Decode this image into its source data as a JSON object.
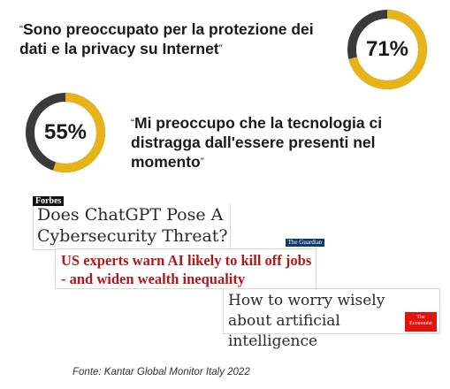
{
  "stat1": {
    "percent": 71,
    "label": "71%",
    "quote_open": "“",
    "quote": "Sono preoccupato per la protezione dei dati e la privacy su Internet",
    "quote_close": "”"
  },
  "stat2": {
    "percent": 55,
    "label": "55%",
    "quote_open": "“",
    "quote": "Mi preoccupo che la tecnologia ci distragga dall'essere presenti nel momento",
    "quote_close": "”"
  },
  "colors": {
    "accent": "#e8b317",
    "ring_dark": "#3a3a3a",
    "guardian_red": "#b3161b",
    "economist_red": "#e3120b"
  },
  "headlines": [
    {
      "source_logo": "Forbes",
      "text": "Does ChatGPT Pose A Cybersecurity Threat?"
    },
    {
      "source_logo": "The Guardian",
      "text": "US experts warn AI likely to kill off jobs - and widen wealth inequality"
    },
    {
      "source_logo": "The Economist",
      "text": "How to worry wisely about artificial intelligence"
    }
  ],
  "source_note": "Fonte: Kantar Global Monitor Italy 2022"
}
